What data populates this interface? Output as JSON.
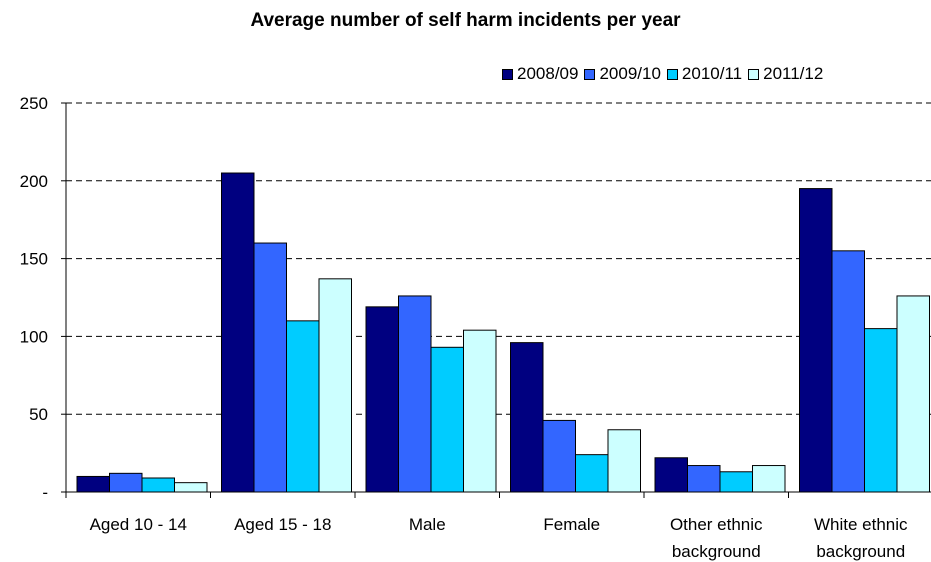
{
  "chart_data": {
    "type": "bar",
    "title": "Average number of self harm incidents per year",
    "xlabel": "",
    "ylabel": "",
    "ylim": [
      0,
      250
    ],
    "y_ticks": [
      0,
      50,
      100,
      150,
      200,
      250
    ],
    "y_tick_labels": [
      "-",
      "50",
      "100",
      "150",
      "200",
      "250"
    ],
    "grid": "horizontal dashed",
    "legend_position": "top-right",
    "categories": [
      [
        "Aged 10 - 14"
      ],
      [
        "Aged 15 - 18"
      ],
      [
        "Male"
      ],
      [
        "Female"
      ],
      [
        "Other ethnic",
        "background"
      ],
      [
        "White ethnic",
        "background"
      ]
    ],
    "series": [
      {
        "name": "2008/09",
        "color": "#000080",
        "values": [
          10,
          205,
          119,
          96,
          22,
          195
        ]
      },
      {
        "name": "2009/10",
        "color": "#3366ff",
        "values": [
          12,
          160,
          126,
          46,
          17,
          155
        ]
      },
      {
        "name": "2010/11",
        "color": "#00ccff",
        "values": [
          9,
          110,
          93,
          24,
          13,
          105
        ]
      },
      {
        "name": "2011/12",
        "color": "#ccffff",
        "values": [
          6,
          137,
          104,
          40,
          17,
          126
        ]
      }
    ]
  }
}
